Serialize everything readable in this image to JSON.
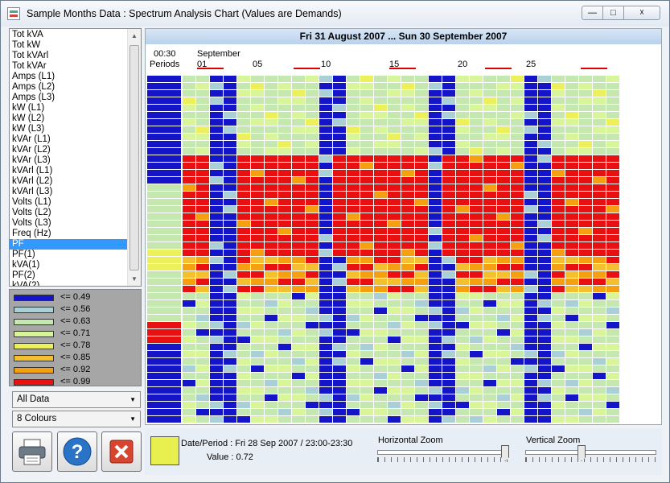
{
  "window": {
    "title": "Sample Months Data : Spectrum Analysis Chart (Values are Demands)"
  },
  "quantity_list": {
    "items": [
      "Tot kVA",
      "Tot kW",
      "Tot kVArl",
      "Tot kVAr",
      "Amps (L1)",
      "Amps (L2)",
      "Amps (L3)",
      "kW (L1)",
      "kW (L2)",
      "kW (L3)",
      "kVAr (L1)",
      "kVAr (L2)",
      "kVAr (L3)",
      "kVArl (L1)",
      "kVArl (L2)",
      "kVArl (L3)",
      "Volts (L1)",
      "Volts (L2)",
      "Volts (L3)",
      "Freq (Hz)",
      "PF",
      "PF(1)",
      "kVA(1)",
      "PF(2)",
      "kVA(2)"
    ],
    "selected": "PF"
  },
  "legend": [
    {
      "label": "<= 0.49",
      "color": "#1414c8"
    },
    {
      "label": "<= 0.56",
      "color": "#a8d0d6"
    },
    {
      "label": "<= 0.63",
      "color": "#c4e8b0"
    },
    {
      "label": "<= 0.71",
      "color": "#d9f59a"
    },
    {
      "label": "<= 0.78",
      "color": "#ecf05a"
    },
    {
      "label": "<= 0.85",
      "color": "#f5c030"
    },
    {
      "label": "<= 0.92",
      "color": "#f5a010"
    },
    {
      "label": "<= 0.99",
      "color": "#e81010"
    }
  ],
  "controls": {
    "data_select": "All Data",
    "colour_select": "8 Colours"
  },
  "chart": {
    "header": "Fri 31 August 2007 ... Sun 30 September 2007",
    "time_label": "00:30",
    "periods_label": "Periods",
    "month_label": "September",
    "day_ticks": [
      "01",
      "05",
      "10",
      "15",
      "20",
      "25"
    ]
  },
  "status": {
    "date_period": "Date/Period : Fri 28 Sep 2007 / 23:00-23:30",
    "value": "Value : 0.72",
    "value_color": "#e8f050"
  },
  "zoom": {
    "horizontal_label": "Horizontal Zoom",
    "vertical_label": "Vertical Zoom",
    "horizontal_level": 0.97,
    "vertical_level": 0.43
  }
}
